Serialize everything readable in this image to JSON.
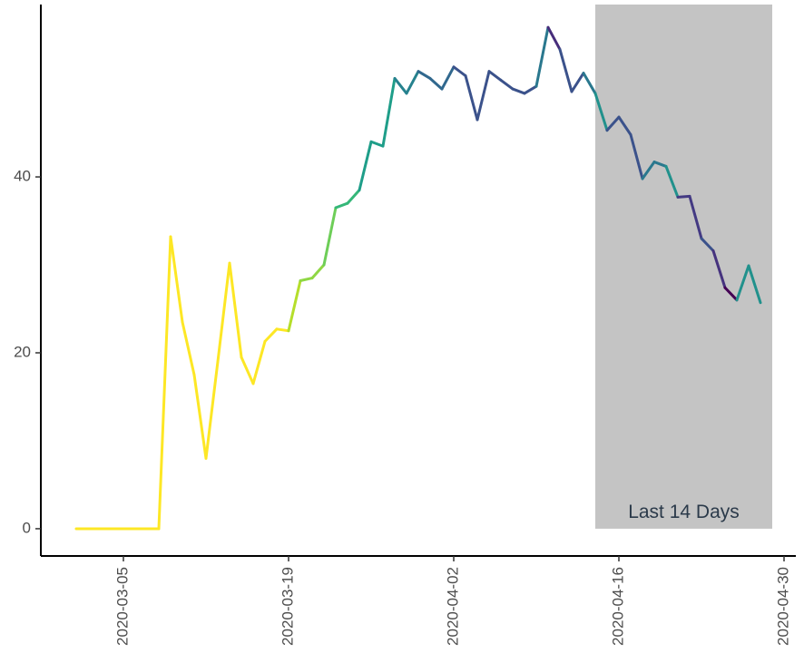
{
  "chart_data": {
    "type": "line",
    "x": [
      "2020-03-01",
      "2020-03-02",
      "2020-03-03",
      "2020-03-04",
      "2020-03-05",
      "2020-03-06",
      "2020-03-07",
      "2020-03-08",
      "2020-03-09",
      "2020-03-10",
      "2020-03-11",
      "2020-03-12",
      "2020-03-13",
      "2020-03-14",
      "2020-03-15",
      "2020-03-16",
      "2020-03-17",
      "2020-03-18",
      "2020-03-19",
      "2020-03-20",
      "2020-03-21",
      "2020-03-22",
      "2020-03-23",
      "2020-03-24",
      "2020-03-25",
      "2020-03-26",
      "2020-03-27",
      "2020-03-28",
      "2020-03-29",
      "2020-03-30",
      "2020-03-31",
      "2020-04-01",
      "2020-04-02",
      "2020-04-03",
      "2020-04-04",
      "2020-04-05",
      "2020-04-06",
      "2020-04-07",
      "2020-04-08",
      "2020-04-09",
      "2020-04-10",
      "2020-04-11",
      "2020-04-12",
      "2020-04-13",
      "2020-04-14",
      "2020-04-15",
      "2020-04-16",
      "2020-04-17",
      "2020-04-18",
      "2020-04-19",
      "2020-04-20",
      "2020-04-21",
      "2020-04-22",
      "2020-04-23",
      "2020-04-24",
      "2020-04-25",
      "2020-04-26",
      "2020-04-27",
      "2020-04-28"
    ],
    "values": [
      0,
      0,
      0,
      0,
      0,
      0,
      0,
      0,
      33.2,
      23.5,
      17.5,
      8,
      19,
      30.2,
      19.5,
      16.5,
      21.3,
      22.7,
      22.5,
      28.2,
      28.5,
      30,
      36.5,
      37,
      38.5,
      44,
      43.5,
      51.2,
      49.5,
      52,
      51.2,
      50,
      52.5,
      51.5,
      46.5,
      52,
      51,
      50,
      49.5,
      50.3,
      57,
      54.5,
      49.7,
      51.8,
      49.5,
      45.3,
      46.8,
      44.8,
      39.8,
      41.7,
      41.2,
      37.7,
      37.8,
      33,
      31.6,
      27.4,
      26,
      29.9,
      25.7
    ],
    "colors": [
      "#fde725",
      "#fde725",
      "#fde725",
      "#fde725",
      "#fde725",
      "#fde725",
      "#fde725",
      "#fde725",
      "#fde725",
      "#fde725",
      "#fde725",
      "#fde725",
      "#fde725",
      "#fde725",
      "#fde725",
      "#fde725",
      "#fde725",
      "#fde725",
      "#fde725",
      "#b5de2b",
      "#8fd744",
      "#8fd744",
      "#6ece58",
      "#35b779",
      "#35b779",
      "#1f9e89",
      "#1f9e89",
      "#1f9e89",
      "#26828e",
      "#26828e",
      "#31688e",
      "#31688e",
      "#31688e",
      "#3b528b",
      "#3b528b",
      "#3b528b",
      "#3b528b",
      "#3b528b",
      "#3b528b",
      "#3b528b",
      "#2a788e",
      "#472d7b",
      "#3b528b",
      "#3b528b",
      "#2a788e",
      "#21918c",
      "#3b528b",
      "#3b528b",
      "#3b528b",
      "#2a788e",
      "#2a788e",
      "#21918c",
      "#443a83",
      "#443a83",
      "#3b528b",
      "#46337e",
      "#440154",
      "#21918c",
      "#21918c"
    ],
    "xlim": [
      "2020-02-27",
      "2020-05-01"
    ],
    "xticks": [
      "2020-03-05",
      "2020-03-19",
      "2020-04-02",
      "2020-04-16",
      "2020-04-30"
    ],
    "ylim": [
      -3.1,
      59.6
    ],
    "yticks": [
      0,
      20,
      40
    ],
    "shade": {
      "x": [
        "2020-04-14",
        "2020-04-29"
      ],
      "y": [
        0,
        59.6
      ],
      "color": "#c4c4c4",
      "label": "Last 14 Days"
    }
  }
}
